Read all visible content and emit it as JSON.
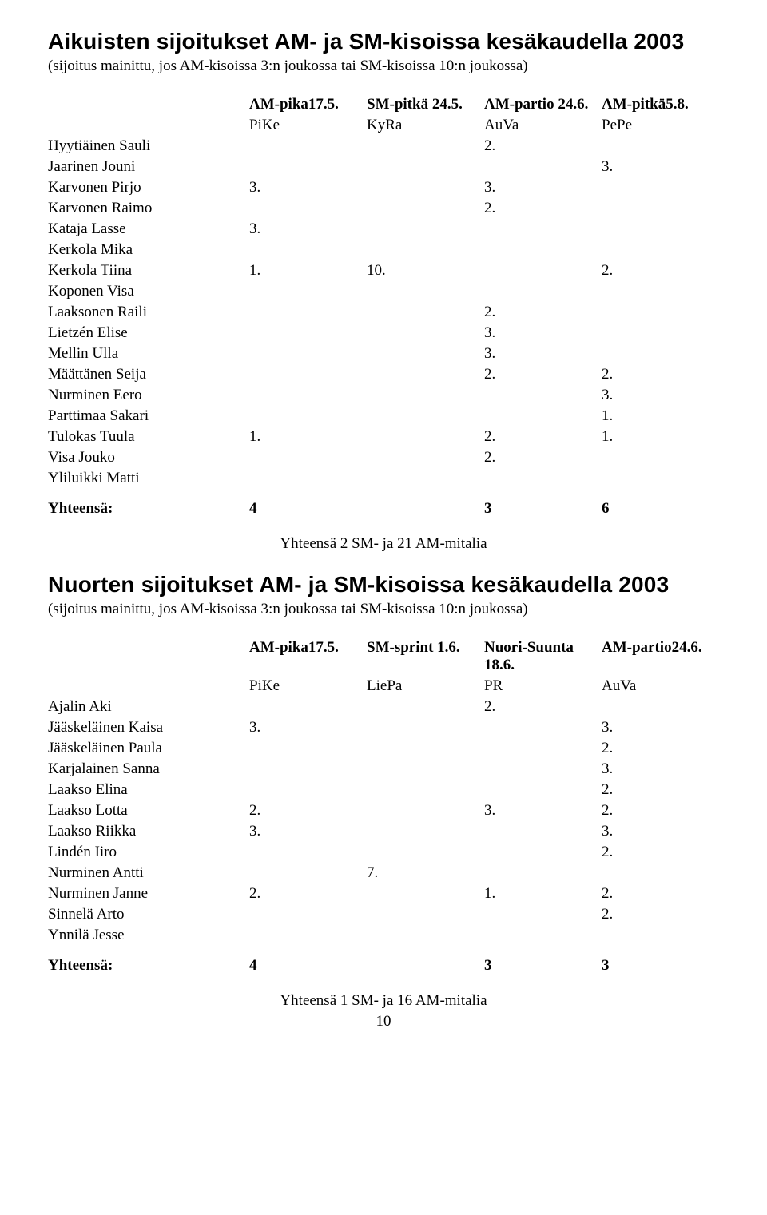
{
  "section1": {
    "title": "Aikuisten sijoitukset AM- ja SM-kisoissa kesäkaudella 2003",
    "subtitle": "(sijoitus mainittu, jos AM-kisoissa 3:n joukossa tai SM-kisoissa 10:n joukossa)",
    "header_event": [
      "AM-pika17.5.",
      "SM-pitkä 24.5.",
      "AM-partio 24.6.",
      "AM-pitkä5.8."
    ],
    "header_club": [
      "PiKe",
      "KyRa",
      "AuVa",
      "PePe"
    ],
    "rows": [
      {
        "name": "Hyytiäinen Sauli",
        "a": "",
        "b": "",
        "c": "2.",
        "d": ""
      },
      {
        "name": "Jaarinen Jouni",
        "a": "",
        "b": "",
        "c": "",
        "d": "3."
      },
      {
        "name": "Karvonen Pirjo",
        "a": "3.",
        "b": "",
        "c": "3.",
        "d": ""
      },
      {
        "name": "Karvonen Raimo",
        "a": "",
        "b": "",
        "c": "2.",
        "d": ""
      },
      {
        "name": "Kataja Lasse",
        "a": "3.",
        "b": "",
        "c": "",
        "d": ""
      },
      {
        "name": "Kerkola Mika",
        "a": "",
        "b": "",
        "c": "",
        "d": ""
      },
      {
        "name": "Kerkola Tiina",
        "a": "1.",
        "b": "10.",
        "c": "",
        "d": "2."
      },
      {
        "name": "Koponen Visa",
        "a": "",
        "b": "",
        "c": "",
        "d": ""
      },
      {
        "name": "Laaksonen Raili",
        "a": "",
        "b": "",
        "c": "2.",
        "d": ""
      },
      {
        "name": "Lietzén Elise",
        "a": "",
        "b": "",
        "c": "3.",
        "d": ""
      },
      {
        "name": "Mellin Ulla",
        "a": "",
        "b": "",
        "c": "3.",
        "d": ""
      },
      {
        "name": "Määttänen Seija",
        "a": "",
        "b": "",
        "c": "2.",
        "d": "2."
      },
      {
        "name": "Nurminen Eero",
        "a": "",
        "b": "",
        "c": "",
        "d": "3."
      },
      {
        "name": "Parttimaa Sakari",
        "a": "",
        "b": "",
        "c": "",
        "d": "1."
      },
      {
        "name": "Tulokas Tuula",
        "a": "1.",
        "b": "",
        "c": "2.",
        "d": "1."
      },
      {
        "name": "Visa Jouko",
        "a": "",
        "b": "",
        "c": "2.",
        "d": ""
      },
      {
        "name": "Yliluikki Matti",
        "a": "",
        "b": "",
        "c": "",
        "d": ""
      }
    ],
    "total_label": "Yhteensä:",
    "totals": [
      "4",
      "",
      "3",
      "6"
    ],
    "summary": "Yhteensä 2 SM- ja 21 AM-mitalia"
  },
  "section2": {
    "title": "Nuorten sijoitukset AM- ja SM-kisoissa kesäkaudella 2003",
    "subtitle": "(sijoitus mainittu, jos AM-kisoissa 3:n joukossa tai SM-kisoissa 10:n joukossa)",
    "header_event": [
      "AM-pika17.5.",
      "SM-sprint 1.6.",
      "Nuori-Suunta 18.6.",
      "AM-partio24.6."
    ],
    "header_club": [
      "PiKe",
      "LiePa",
      "PR",
      "AuVa"
    ],
    "rows": [
      {
        "name": "Ajalin Aki",
        "a": "",
        "b": "",
        "c": "2.",
        "d": ""
      },
      {
        "name": "Jääskeläinen Kaisa",
        "a": "3.",
        "b": "",
        "c": "",
        "d": "3."
      },
      {
        "name": "Jääskeläinen Paula",
        "a": "",
        "b": "",
        "c": "",
        "d": "2."
      },
      {
        "name": "Karjalainen Sanna",
        "a": "",
        "b": "",
        "c": "",
        "d": "3."
      },
      {
        "name": "Laakso Elina",
        "a": "",
        "b": "",
        "c": "",
        "d": "2."
      },
      {
        "name": "Laakso Lotta",
        "a": "2.",
        "b": "",
        "c": "3.",
        "d": "2."
      },
      {
        "name": "Laakso Riikka",
        "a": "3.",
        "b": "",
        "c": "",
        "d": "3."
      },
      {
        "name": "Lindén Iiro",
        "a": "",
        "b": "",
        "c": "",
        "d": "2."
      },
      {
        "name": "Nurminen Antti",
        "a": "",
        "b": "7.",
        "c": "",
        "d": ""
      },
      {
        "name": "Nurminen Janne",
        "a": "2.",
        "b": "",
        "c": "1.",
        "d": "2."
      },
      {
        "name": "Sinnelä Arto",
        "a": "",
        "b": "",
        "c": "",
        "d": "2."
      },
      {
        "name": "Ynnilä Jesse",
        "a": "",
        "b": "",
        "c": "",
        "d": ""
      }
    ],
    "total_label": "Yhteensä:",
    "totals": [
      "4",
      "",
      "3",
      "3"
    ],
    "summary": "Yhteensä 1 SM- ja 16 AM-mitalia"
  },
  "page_number": "10"
}
